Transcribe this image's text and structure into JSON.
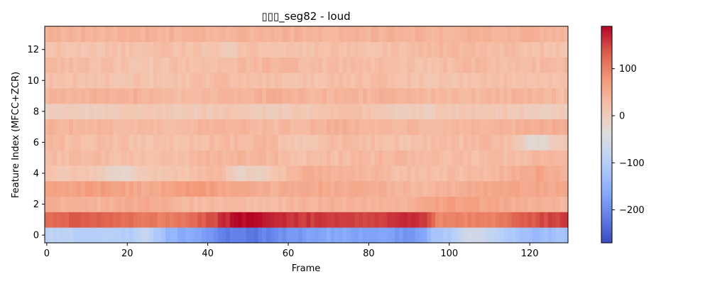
{
  "chart_data": {
    "type": "heatmap",
    "title": "▯▯▯_seg82 - loud",
    "xlabel": "Frame",
    "ylabel": "Feature Index (MFCC+ZCR)",
    "colormap": "coolwarm",
    "x_range": [
      -0.5,
      129.5
    ],
    "y_range": [
      -0.5,
      13.5
    ],
    "x_ticks": [
      0,
      20,
      40,
      60,
      80,
      100,
      120
    ],
    "y_ticks": [
      0,
      2,
      4,
      6,
      8,
      10,
      12
    ],
    "colorbar": {
      "vmin": -270,
      "vmax": 190,
      "ticks": [
        100,
        0,
        -100,
        -200
      ],
      "tick_labels": [
        "100",
        "0",
        "−100",
        "−200"
      ]
    },
    "n_frames": 130,
    "rows": [
      {
        "index": 0,
        "anchors": [
          [
            0,
            -85
          ],
          [
            10,
            -95
          ],
          [
            20,
            -105
          ],
          [
            25,
            -75
          ],
          [
            30,
            -140
          ],
          [
            38,
            -175
          ],
          [
            45,
            -215
          ],
          [
            52,
            -220
          ],
          [
            60,
            -190
          ],
          [
            70,
            -165
          ],
          [
            80,
            -170
          ],
          [
            90,
            -185
          ],
          [
            94,
            -170
          ],
          [
            96,
            -120
          ],
          [
            100,
            -110
          ],
          [
            105,
            -65
          ],
          [
            110,
            -80
          ],
          [
            115,
            -110
          ],
          [
            120,
            -135
          ],
          [
            129,
            -120
          ]
        ]
      },
      {
        "index": 1,
        "anchors": [
          [
            0,
            125
          ],
          [
            10,
            135
          ],
          [
            20,
            120
          ],
          [
            28,
            105
          ],
          [
            35,
            115
          ],
          [
            42,
            150
          ],
          [
            48,
            190
          ],
          [
            55,
            180
          ],
          [
            62,
            160
          ],
          [
            70,
            155
          ],
          [
            80,
            150
          ],
          [
            90,
            170
          ],
          [
            94,
            160
          ],
          [
            97,
            100
          ],
          [
            100,
            95
          ],
          [
            110,
            100
          ],
          [
            120,
            135
          ],
          [
            129,
            160
          ]
        ]
      },
      {
        "index": 2,
        "anchors": [
          [
            0,
            45
          ],
          [
            15,
            40
          ],
          [
            25,
            55
          ],
          [
            35,
            35
          ],
          [
            45,
            30
          ],
          [
            55,
            25
          ],
          [
            65,
            40
          ],
          [
            75,
            45
          ],
          [
            85,
            35
          ],
          [
            92,
            45
          ],
          [
            100,
            70
          ],
          [
            110,
            55
          ],
          [
            120,
            45
          ],
          [
            129,
            35
          ]
        ]
      },
      {
        "index": 3,
        "anchors": [
          [
            0,
            60
          ],
          [
            15,
            70
          ],
          [
            25,
            50
          ],
          [
            35,
            75
          ],
          [
            45,
            60
          ],
          [
            55,
            45
          ],
          [
            65,
            55
          ],
          [
            75,
            50
          ],
          [
            85,
            45
          ],
          [
            95,
            35
          ],
          [
            105,
            50
          ],
          [
            115,
            60
          ],
          [
            125,
            55
          ],
          [
            129,
            65
          ]
        ]
      },
      {
        "index": 4,
        "anchors": [
          [
            0,
            15
          ],
          [
            12,
            10
          ],
          [
            18,
            -20
          ],
          [
            25,
            10
          ],
          [
            35,
            20
          ],
          [
            42,
            40
          ],
          [
            48,
            -15
          ],
          [
            55,
            5
          ],
          [
            65,
            50
          ],
          [
            75,
            45
          ],
          [
            85,
            30
          ],
          [
            95,
            25
          ],
          [
            105,
            30
          ],
          [
            115,
            40
          ],
          [
            122,
            60
          ],
          [
            129,
            45
          ]
        ]
      },
      {
        "index": 5,
        "anchors": [
          [
            0,
            25
          ],
          [
            15,
            30
          ],
          [
            25,
            20
          ],
          [
            35,
            30
          ],
          [
            45,
            40
          ],
          [
            55,
            35
          ],
          [
            65,
            25
          ],
          [
            75,
            30
          ],
          [
            85,
            35
          ],
          [
            95,
            30
          ],
          [
            105,
            25
          ],
          [
            115,
            30
          ],
          [
            125,
            35
          ],
          [
            129,
            30
          ]
        ]
      },
      {
        "index": 6,
        "anchors": [
          [
            0,
            30
          ],
          [
            15,
            25
          ],
          [
            25,
            20
          ],
          [
            35,
            25
          ],
          [
            45,
            30
          ],
          [
            55,
            35
          ],
          [
            62,
            10
          ],
          [
            70,
            30
          ],
          [
            80,
            25
          ],
          [
            90,
            20
          ],
          [
            100,
            25
          ],
          [
            110,
            35
          ],
          [
            116,
            20
          ],
          [
            120,
            -25
          ],
          [
            124,
            -20
          ],
          [
            129,
            20
          ]
        ]
      },
      {
        "index": 7,
        "anchors": [
          [
            0,
            40
          ],
          [
            15,
            35
          ],
          [
            25,
            30
          ],
          [
            35,
            35
          ],
          [
            45,
            40
          ],
          [
            55,
            30
          ],
          [
            65,
            35
          ],
          [
            70,
            45
          ],
          [
            80,
            40
          ],
          [
            90,
            35
          ],
          [
            100,
            30
          ],
          [
            110,
            35
          ],
          [
            120,
            45
          ],
          [
            129,
            50
          ]
        ]
      },
      {
        "index": 8,
        "anchors": [
          [
            0,
            -5
          ],
          [
            15,
            0
          ],
          [
            25,
            10
          ],
          [
            35,
            5
          ],
          [
            45,
            15
          ],
          [
            55,
            0
          ],
          [
            65,
            10
          ],
          [
            75,
            20
          ],
          [
            85,
            5
          ],
          [
            95,
            0
          ],
          [
            105,
            15
          ],
          [
            115,
            10
          ],
          [
            122,
            0
          ],
          [
            129,
            5
          ]
        ]
      },
      {
        "index": 9,
        "anchors": [
          [
            0,
            35
          ],
          [
            15,
            45
          ],
          [
            25,
            40
          ],
          [
            35,
            30
          ],
          [
            45,
            35
          ],
          [
            55,
            45
          ],
          [
            65,
            40
          ],
          [
            75,
            35
          ],
          [
            85,
            45
          ],
          [
            95,
            35
          ],
          [
            105,
            30
          ],
          [
            115,
            40
          ],
          [
            125,
            35
          ],
          [
            129,
            30
          ]
        ]
      },
      {
        "index": 10,
        "anchors": [
          [
            0,
            25
          ],
          [
            15,
            20
          ],
          [
            25,
            15
          ],
          [
            35,
            20
          ],
          [
            45,
            30
          ],
          [
            55,
            25
          ],
          [
            65,
            20
          ],
          [
            75,
            25
          ],
          [
            85,
            30
          ],
          [
            95,
            15
          ],
          [
            105,
            20
          ],
          [
            115,
            25
          ],
          [
            125,
            20
          ],
          [
            129,
            25
          ]
        ]
      },
      {
        "index": 11,
        "anchors": [
          [
            0,
            30
          ],
          [
            15,
            25
          ],
          [
            25,
            15
          ],
          [
            35,
            25
          ],
          [
            45,
            30
          ],
          [
            55,
            35
          ],
          [
            65,
            30
          ],
          [
            75,
            25
          ],
          [
            85,
            30
          ],
          [
            95,
            20
          ],
          [
            105,
            35
          ],
          [
            115,
            25
          ],
          [
            125,
            30
          ],
          [
            129,
            35
          ]
        ]
      },
      {
        "index": 12,
        "anchors": [
          [
            0,
            20
          ],
          [
            10,
            15
          ],
          [
            20,
            20
          ],
          [
            30,
            25
          ],
          [
            40,
            15
          ],
          [
            45,
            5
          ],
          [
            50,
            25
          ],
          [
            60,
            20
          ],
          [
            70,
            25
          ],
          [
            80,
            20
          ],
          [
            90,
            25
          ],
          [
            100,
            35
          ],
          [
            110,
            30
          ],
          [
            120,
            25
          ],
          [
            129,
            20
          ]
        ]
      },
      {
        "index": 13,
        "anchors": [
          [
            0,
            40
          ],
          [
            30,
            42
          ],
          [
            60,
            40
          ],
          [
            90,
            42
          ],
          [
            129,
            40
          ]
        ]
      }
    ]
  }
}
